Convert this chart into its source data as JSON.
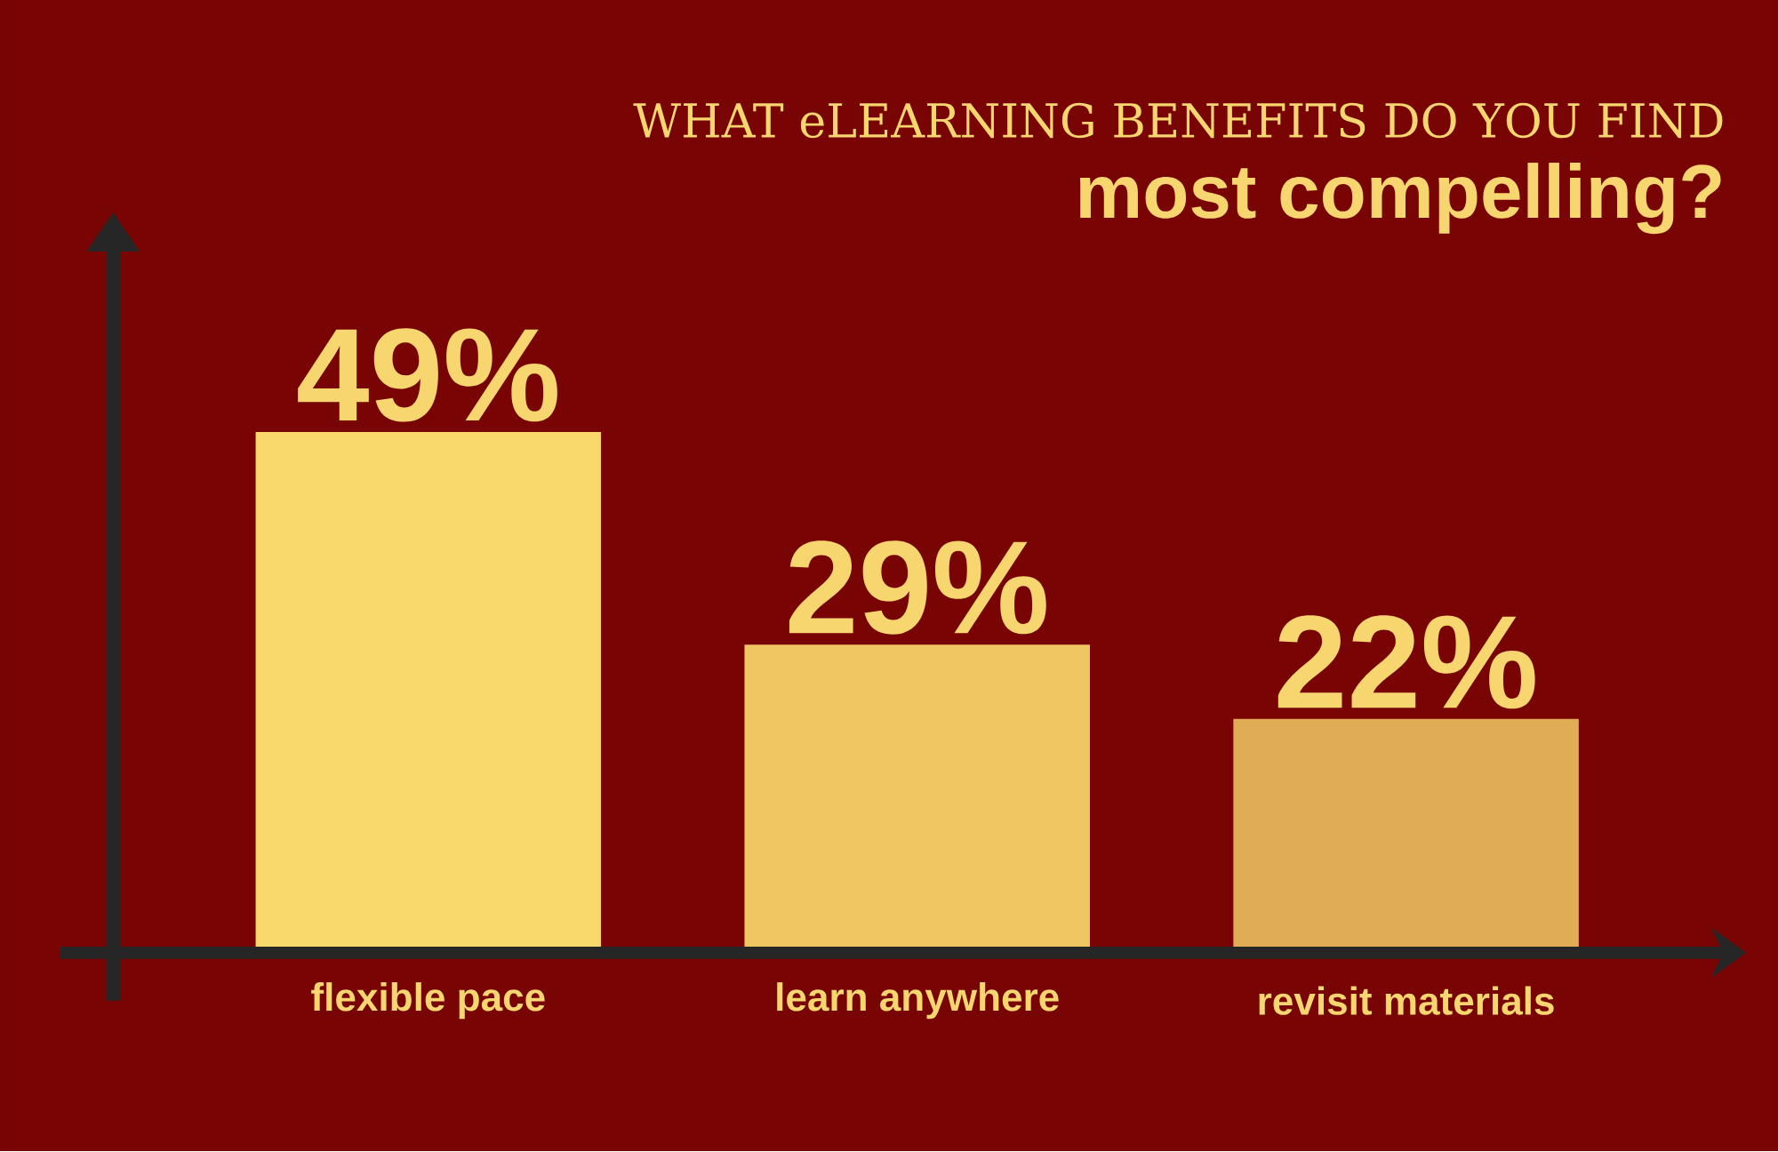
{
  "chart_data": {
    "type": "bar",
    "title": "WHAT eLEARNING BENEFITS DO YOU FIND",
    "subtitle": "most compelling?",
    "categories": [
      "flexible pace",
      "learn anywhere",
      "revisit materials"
    ],
    "values": [
      49,
      29,
      22
    ],
    "colors": [
      "#f9d96b",
      "#efc661",
      "#e0ad56"
    ],
    "value_labels": [
      "49%",
      "29%",
      "22%"
    ]
  }
}
